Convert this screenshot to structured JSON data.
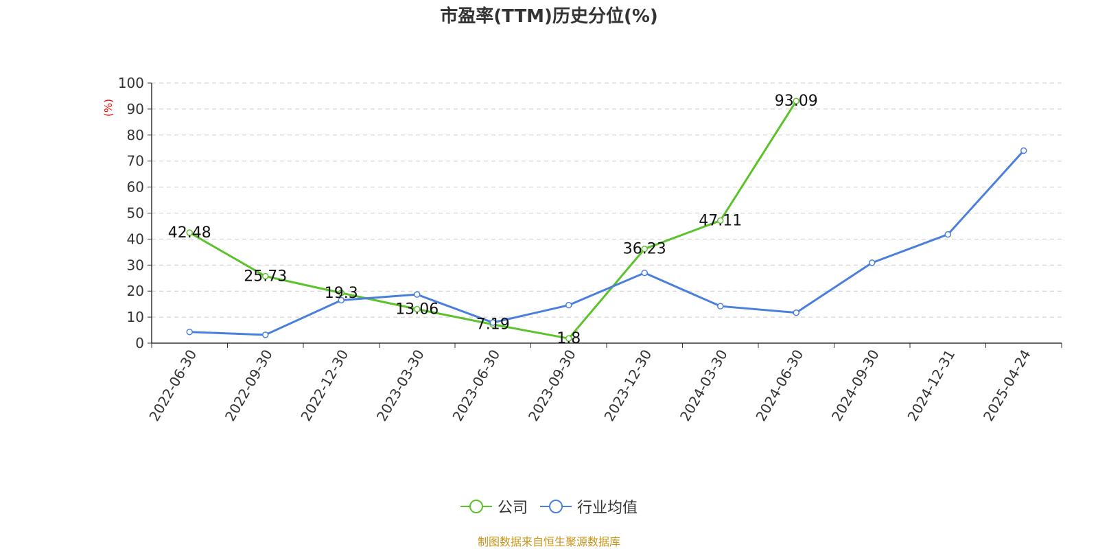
{
  "title": "市盈率(TTM)历史分位(%)",
  "source_note": "制图数据来自恒生聚源数据库",
  "chart_data": {
    "type": "line",
    "title": "市盈率(TTM)历史分位(%)",
    "xlabel": "",
    "ylabel": "(%)",
    "ylim": [
      0,
      100
    ],
    "yticks": [
      0,
      10,
      20,
      30,
      40,
      50,
      60,
      70,
      80,
      90,
      100
    ],
    "grid": true,
    "legend_position": "bottom",
    "categories": [
      "2022-06-30",
      "2022-09-30",
      "2022-12-30",
      "2023-03-30",
      "2023-06-30",
      "2023-09-30",
      "2023-12-30",
      "2024-03-30",
      "2024-06-30",
      "2024-09-30",
      "2024-12-31",
      "2025-04-24"
    ],
    "series": [
      {
        "name": "公司",
        "color": "#5cc22b",
        "show_labels": true,
        "values": [
          42.48,
          25.73,
          19.3,
          13.06,
          7.19,
          1.8,
          36.23,
          47.11,
          93.09,
          null,
          null,
          null
        ]
      },
      {
        "name": "行业均值",
        "color": "#4a7fdd",
        "show_labels": false,
        "values": [
          4.3,
          3.2,
          16.5,
          18.7,
          7.9,
          14.6,
          27.0,
          14.2,
          11.7,
          30.9,
          41.8,
          74.0
        ]
      }
    ]
  }
}
